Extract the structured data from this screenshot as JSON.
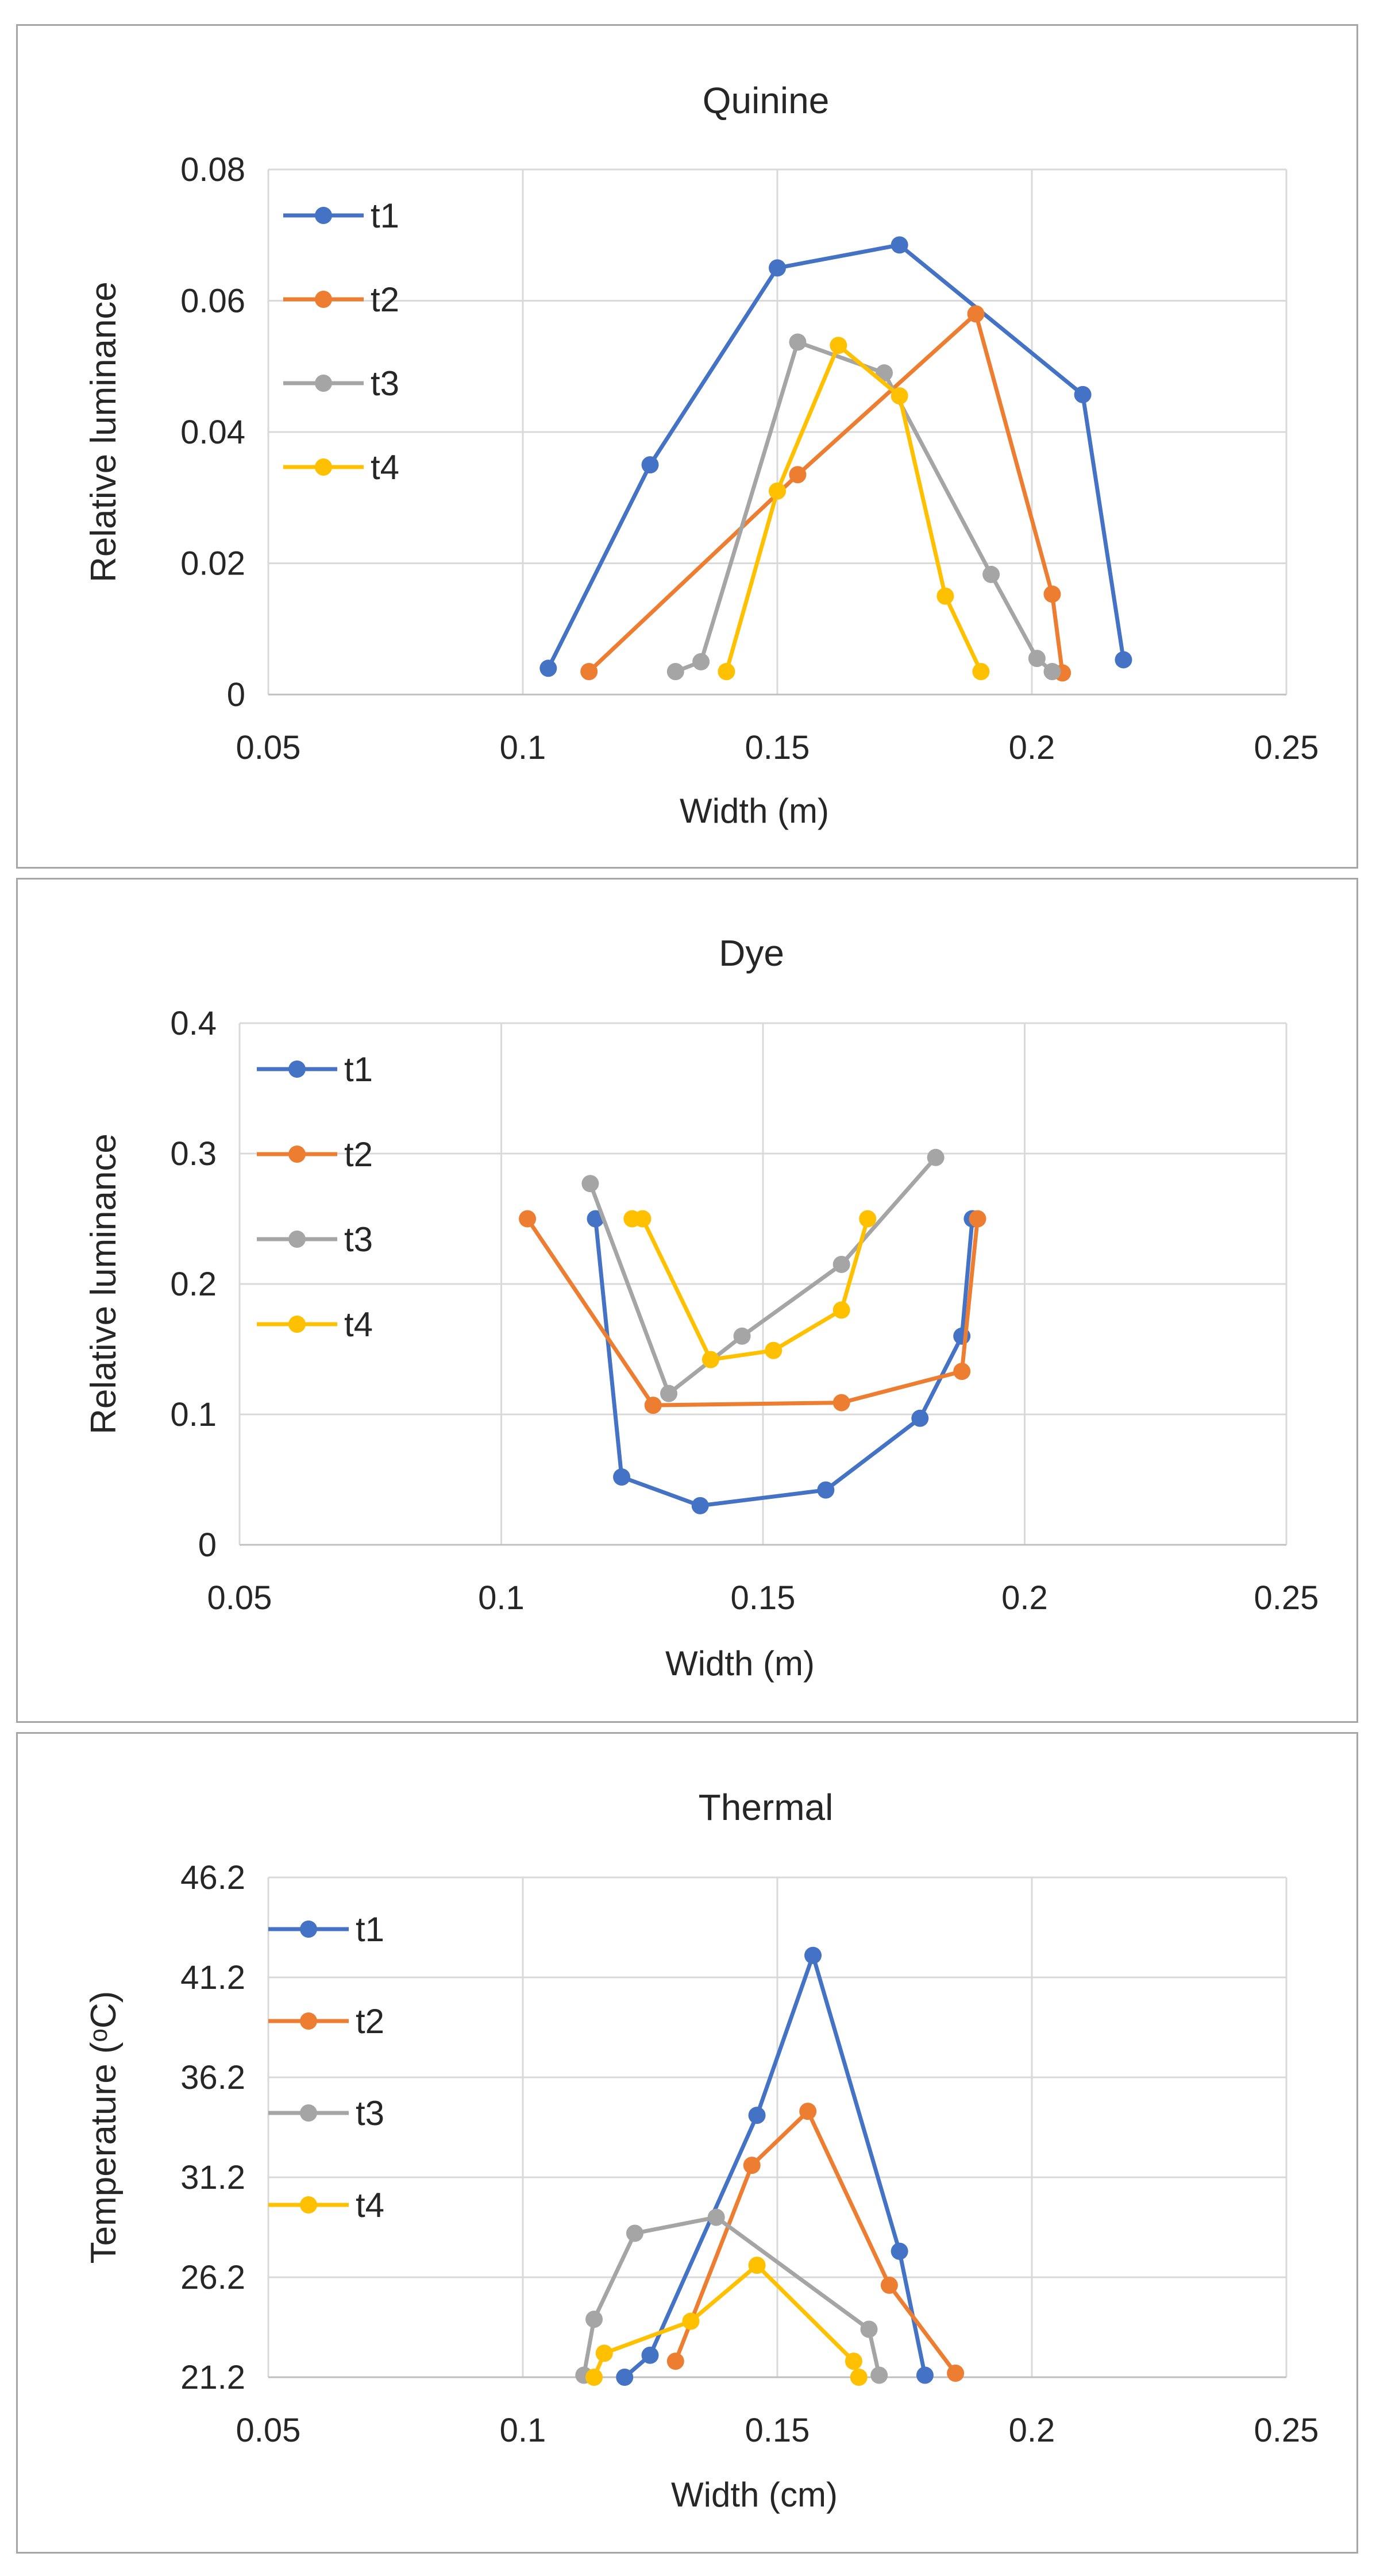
{
  "chart_data": [
    {
      "type": "line",
      "title": "Quinine",
      "xlabel": "Width (m)",
      "ylabel": "Relative luminance",
      "xlim": [
        0.05,
        0.25
      ],
      "ylim": [
        0,
        0.08
      ],
      "xticks": [
        0.05,
        0.1,
        0.15,
        0.2,
        0.25
      ],
      "yticks": [
        0,
        0.02,
        0.04,
        0.06,
        0.08
      ],
      "xtick_labels": [
        "0.05",
        "0.1",
        "0.15",
        "0.2",
        "0.25"
      ],
      "ytick_labels": [
        "0",
        "0.02",
        "0.04",
        "0.06",
        "0.08"
      ],
      "grid": true,
      "legend_position": "top-left",
      "series": [
        {
          "name": "t1",
          "color": "#4472C4",
          "points": [
            [
              0.105,
              0.004
            ],
            [
              0.125,
              0.035
            ],
            [
              0.15,
              0.065
            ],
            [
              0.174,
              0.0685
            ],
            [
              0.21,
              0.0457
            ],
            [
              0.218,
              0.0053
            ]
          ]
        },
        {
          "name": "t2",
          "color": "#ED7D31",
          "points": [
            [
              0.113,
              0.0035
            ],
            [
              0.154,
              0.0335
            ],
            [
              0.189,
              0.058
            ],
            [
              0.204,
              0.0153
            ],
            [
              0.206,
              0.0033
            ]
          ]
        },
        {
          "name": "t3",
          "color": "#A5A5A5",
          "points": [
            [
              0.13,
              0.0035
            ],
            [
              0.135,
              0.005
            ],
            [
              0.154,
              0.0537
            ],
            [
              0.171,
              0.049
            ],
            [
              0.192,
              0.0183
            ],
            [
              0.201,
              0.0055
            ],
            [
              0.204,
              0.0035
            ]
          ]
        },
        {
          "name": "t4",
          "color": "#FFC000",
          "points": [
            [
              0.14,
              0.0035
            ],
            [
              0.15,
              0.031
            ],
            [
              0.162,
              0.0532
            ],
            [
              0.174,
              0.0455
            ],
            [
              0.183,
              0.015
            ],
            [
              0.19,
              0.0035
            ]
          ]
        }
      ]
    },
    {
      "type": "line",
      "title": "Dye",
      "xlabel": "Width (m)",
      "ylabel": "Relative luminance",
      "xlim": [
        0.05,
        0.25
      ],
      "ylim": [
        0,
        0.4
      ],
      "xticks": [
        0.05,
        0.1,
        0.15,
        0.2,
        0.25
      ],
      "yticks": [
        0,
        0.1,
        0.2,
        0.3,
        0.4
      ],
      "xtick_labels": [
        "0.05",
        "0.1",
        "0.15",
        "0.2",
        "0.25"
      ],
      "ytick_labels": [
        "0",
        "0.1",
        "0.2",
        "0.3",
        "0.4"
      ],
      "grid": true,
      "legend_position": "top-left",
      "series": [
        {
          "name": "t1",
          "color": "#4472C4",
          "points": [
            [
              0.118,
              0.25
            ],
            [
              0.123,
              0.052
            ],
            [
              0.138,
              0.03
            ],
            [
              0.162,
              0.042
            ],
            [
              0.18,
              0.097
            ],
            [
              0.188,
              0.16
            ],
            [
              0.19,
              0.25
            ]
          ]
        },
        {
          "name": "t2",
          "color": "#ED7D31",
          "points": [
            [
              0.105,
              0.25
            ],
            [
              0.129,
              0.107
            ],
            [
              0.165,
              0.109
            ],
            [
              0.188,
              0.133
            ],
            [
              0.191,
              0.25
            ]
          ]
        },
        {
          "name": "t3",
          "color": "#A5A5A5",
          "points": [
            [
              0.117,
              0.277
            ],
            [
              0.132,
              0.116
            ],
            [
              0.146,
              0.16
            ],
            [
              0.165,
              0.215
            ],
            [
              0.183,
              0.297
            ]
          ]
        },
        {
          "name": "t4",
          "color": "#FFC000",
          "points": [
            [
              0.125,
              0.25
            ],
            [
              0.127,
              0.25
            ],
            [
              0.14,
              0.142
            ],
            [
              0.152,
              0.149
            ],
            [
              0.165,
              0.18
            ],
            [
              0.17,
              0.25
            ]
          ]
        }
      ]
    },
    {
      "type": "line",
      "title": "Thermal",
      "xlabel": "Width (cm)",
      "ylabel": "Temperature (ᵒC)",
      "xlim": [
        0.05,
        0.25
      ],
      "ylim": [
        21.2,
        46.2
      ],
      "xticks": [
        0.05,
        0.1,
        0.15,
        0.2,
        0.25
      ],
      "yticks": [
        21.2,
        26.2,
        31.2,
        36.2,
        41.2,
        46.2
      ],
      "xtick_labels": [
        "0.05",
        "0.1",
        "0.15",
        "0.2",
        "0.25"
      ],
      "ytick_labels": [
        "21.2",
        "26.2",
        "31.2",
        "36.2",
        "41.2",
        "46.2"
      ],
      "grid": true,
      "legend_position": "top-left",
      "series": [
        {
          "name": "t1",
          "color": "#4472C4",
          "points": [
            [
              0.12,
              21.2
            ],
            [
              0.125,
              22.3
            ],
            [
              0.146,
              34.3
            ],
            [
              0.157,
              42.3
            ],
            [
              0.174,
              27.5
            ],
            [
              0.179,
              21.3
            ]
          ]
        },
        {
          "name": "t2",
          "color": "#ED7D31",
          "points": [
            [
              0.13,
              22
            ],
            [
              0.145,
              31.8
            ],
            [
              0.156,
              34.5
            ],
            [
              0.172,
              25.8
            ],
            [
              0.185,
              21.4
            ]
          ]
        },
        {
          "name": "t3",
          "color": "#A5A5A5",
          "points": [
            [
              0.112,
              21.3
            ],
            [
              0.114,
              24.1
            ],
            [
              0.122,
              28.4
            ],
            [
              0.138,
              29.2
            ],
            [
              0.168,
              23.6
            ],
            [
              0.17,
              21.3
            ]
          ]
        },
        {
          "name": "t4",
          "color": "#FFC000",
          "points": [
            [
              0.114,
              21.2
            ],
            [
              0.116,
              22.4
            ],
            [
              0.133,
              24
            ],
            [
              0.146,
              26.8
            ],
            [
              0.165,
              22
            ],
            [
              0.166,
              21.2
            ]
          ]
        }
      ]
    }
  ]
}
